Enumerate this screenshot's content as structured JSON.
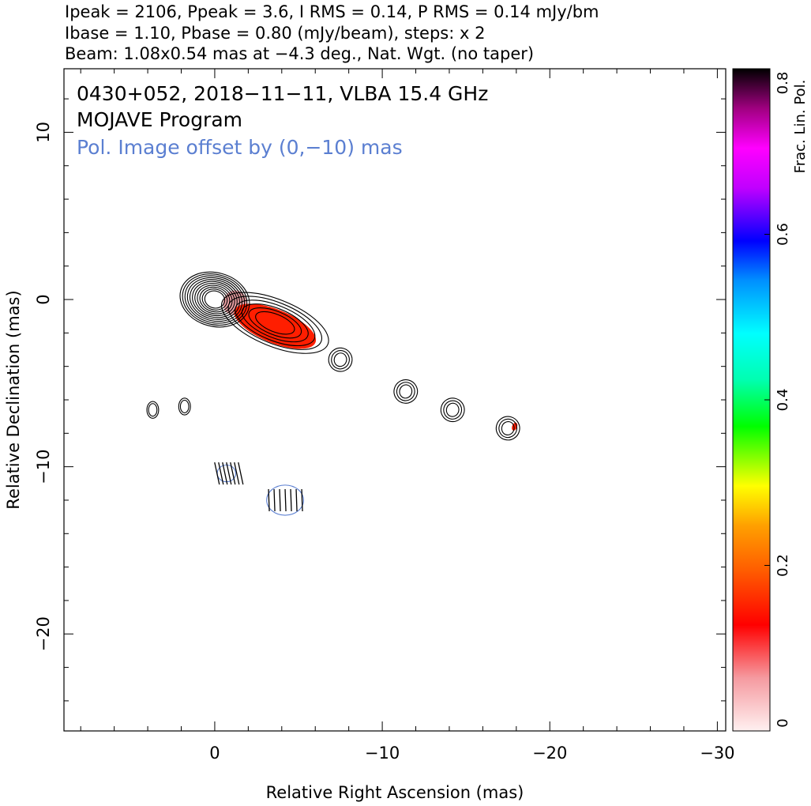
{
  "header": {
    "line1": "Ipeak = 2106, Ppeak = 3.6, I RMS = 0.14, P RMS = 0.14 mJy/bm",
    "line2": "Ibase = 1.10, Pbase = 0.80 (mJy/beam), steps: x 2",
    "line3": "Beam: 1.08x0.54 mas at −4.3 deg., Nat. Wgt. (no taper)"
  },
  "chart_data": {
    "type": "contour",
    "title": "0430+052, 2018−11−11, VLBA 15.4 GHz",
    "subtitle": "MOJAVE Program",
    "annotation": "Pol. Image offset by (0,−10) mas",
    "xlabel": "Relative Right Ascension (mas)",
    "ylabel": "Relative Declination (mas)",
    "xlim": [
      9,
      -30.5
    ],
    "ylim": [
      -25.8,
      13.8
    ],
    "x_ticks": [
      0,
      -10,
      -20,
      -30
    ],
    "x_tick_labels": [
      "0",
      "−10",
      "−20",
      "−30"
    ],
    "y_ticks": [
      10,
      0,
      -10,
      -20
    ],
    "y_tick_labels": [
      "10",
      "0",
      "−10",
      "−20"
    ],
    "colorbar": {
      "label": "Frac. Lin. Pol.",
      "range": [
        0,
        0.8
      ],
      "ticks": [
        0,
        0.2,
        0.4,
        0.6,
        0.8
      ],
      "tick_labels": [
        "0",
        "0.2",
        "0.4",
        "0.6",
        "0.8"
      ]
    },
    "total_intensity_components": [
      {
        "x": 0,
        "y": 0,
        "levels": 11
      },
      {
        "x": -3.6,
        "y": -1.4,
        "levels": 6
      },
      {
        "x": -7.5,
        "y": -3.6,
        "levels": 3
      },
      {
        "x": -11.4,
        "y": -5.5,
        "levels": 3
      },
      {
        "x": -14.2,
        "y": -6.6,
        "levels": 3
      },
      {
        "x": -17.5,
        "y": -7.7,
        "levels": 3
      },
      {
        "x": 3.7,
        "y": -6.6,
        "levels": 2
      },
      {
        "x": 1.8,
        "y": -6.4,
        "levels": 2
      }
    ],
    "polarized_components": [
      {
        "x": -0.7,
        "y": -10.4
      },
      {
        "x": -4.2,
        "y": -12.0
      }
    ],
    "frac_pol_regions": [
      {
        "x": -1.2,
        "y": -0.2,
        "fpol": 0.05
      },
      {
        "x": -3.6,
        "y": -1.6,
        "fpol": 0.15
      },
      {
        "x": -17.9,
        "y": -7.6,
        "fpol": 0.15
      }
    ],
    "text_colors": {
      "annotation": "#5b7fd1",
      "polarization_contours": "#7f8c95"
    }
  }
}
